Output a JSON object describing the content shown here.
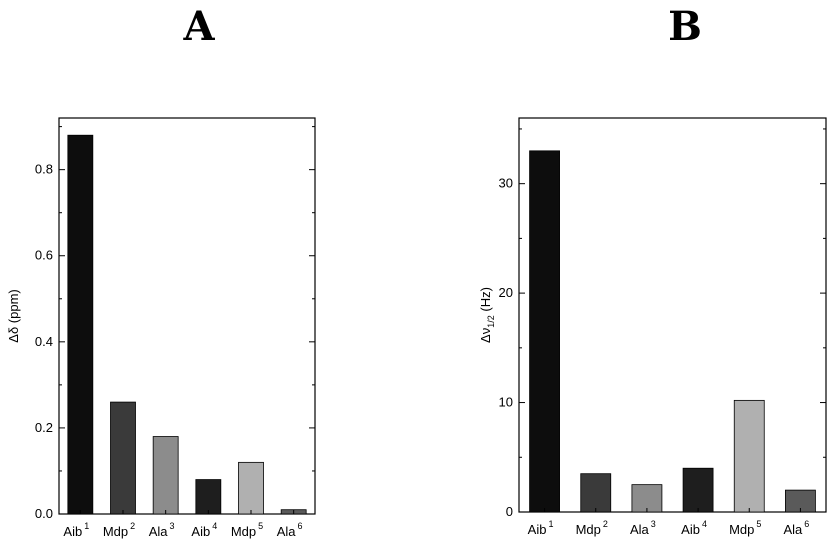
{
  "chart_data": [
    {
      "type": "bar",
      "panel_label": "A",
      "categories": [
        {
          "base": "Aib",
          "sup": "1"
        },
        {
          "base": "Mdp",
          "sup": "2"
        },
        {
          "base": "Ala",
          "sup": "3"
        },
        {
          "base": "Aib",
          "sup": "4"
        },
        {
          "base": "Mdp",
          "sup": "5"
        },
        {
          "base": "Ala",
          "sup": "6"
        }
      ],
      "values": [
        0.88,
        0.26,
        0.18,
        0.08,
        0.12,
        0.01
      ],
      "bar_colors": [
        "#0d0d0d",
        "#3a3a3a",
        "#8c8c8c",
        "#1e1e1e",
        "#b0b0b0",
        "#5a5a5a"
      ],
      "ylabel": {
        "main": "Δδ (ppm)",
        "sub": ""
      },
      "ylim": [
        0,
        0.92
      ],
      "yticks": [
        "0.0",
        "0.2",
        "0.4",
        "0.6",
        "0.8"
      ],
      "ytick_values": [
        0,
        0.2,
        0.4,
        0.6,
        0.8
      ],
      "minor_ticks": [
        0.1,
        0.3,
        0.5,
        0.7,
        0.9
      ],
      "grid": false
    },
    {
      "type": "bar",
      "panel_label": "B",
      "categories": [
        {
          "base": "Aib",
          "sup": "1"
        },
        {
          "base": "Mdp",
          "sup": "2"
        },
        {
          "base": "Ala",
          "sup": "3"
        },
        {
          "base": "Aib",
          "sup": "4"
        },
        {
          "base": "Mdp",
          "sup": "5"
        },
        {
          "base": "Ala",
          "sup": "6"
        }
      ],
      "values": [
        33.0,
        3.5,
        2.5,
        4.0,
        10.2,
        2.0
      ],
      "bar_colors": [
        "#0d0d0d",
        "#3a3a3a",
        "#8c8c8c",
        "#1e1e1e",
        "#b0b0b0",
        "#5a5a5a"
      ],
      "ylabel": {
        "main": "Δν",
        "sub": "1/2",
        "unit": " (Hz)"
      },
      "ylim": [
        0,
        36
      ],
      "yticks": [
        "0",
        "10",
        "20",
        "30"
      ],
      "ytick_values": [
        0,
        10,
        20,
        30
      ],
      "minor_ticks": [
        5,
        15,
        25,
        35
      ],
      "grid": false
    }
  ]
}
